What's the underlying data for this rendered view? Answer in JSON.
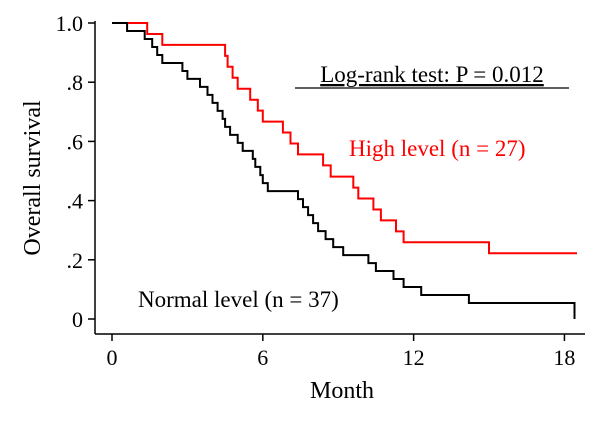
{
  "chart_data": {
    "type": "line",
    "step": true,
    "xlabel": "Month",
    "ylabel": "Overall survival",
    "xlim": [
      0,
      18.5
    ],
    "ylim": [
      0,
      1.0
    ],
    "x_ticks": [
      0,
      6,
      12,
      18
    ],
    "x_tick_labels": [
      "0",
      "6",
      "12",
      "18"
    ],
    "y_ticks": [
      0,
      0.2,
      0.4,
      0.6,
      0.8,
      1.0
    ],
    "y_tick_labels": [
      "0",
      ".2",
      ".4",
      ".6",
      ".8",
      "1.0"
    ],
    "grid": false,
    "annotation": "Log-rank test: P = 0.012",
    "series": [
      {
        "name": "High level (n = 27)",
        "color": "#ff0000",
        "points": [
          [
            0,
            1.0
          ],
          [
            1.4,
            0.963
          ],
          [
            2.0,
            0.926
          ],
          [
            4.5,
            0.889
          ],
          [
            4.6,
            0.852
          ],
          [
            4.8,
            0.815
          ],
          [
            5.0,
            0.778
          ],
          [
            5.5,
            0.741
          ],
          [
            5.8,
            0.704
          ],
          [
            6.0,
            0.667
          ],
          [
            6.8,
            0.63
          ],
          [
            7.1,
            0.593
          ],
          [
            7.4,
            0.556
          ],
          [
            8.4,
            0.519
          ],
          [
            8.7,
            0.481
          ],
          [
            9.6,
            0.444
          ],
          [
            9.8,
            0.407
          ],
          [
            10.4,
            0.37
          ],
          [
            10.7,
            0.333
          ],
          [
            11.3,
            0.296
          ],
          [
            11.6,
            0.259
          ],
          [
            15.0,
            0.222
          ],
          [
            18.5,
            0.222
          ]
        ]
      },
      {
        "name": "Normal level (n = 37)",
        "color": "#000000",
        "points": [
          [
            0,
            1.0
          ],
          [
            0.6,
            0.973
          ],
          [
            1.3,
            0.946
          ],
          [
            1.6,
            0.919
          ],
          [
            1.8,
            0.892
          ],
          [
            2.0,
            0.865
          ],
          [
            2.8,
            0.838
          ],
          [
            3.0,
            0.811
          ],
          [
            3.5,
            0.784
          ],
          [
            3.8,
            0.757
          ],
          [
            4.0,
            0.73
          ],
          [
            4.2,
            0.703
          ],
          [
            4.4,
            0.676
          ],
          [
            4.5,
            0.649
          ],
          [
            4.7,
            0.622
          ],
          [
            5.0,
            0.595
          ],
          [
            5.2,
            0.568
          ],
          [
            5.6,
            0.541
          ],
          [
            5.7,
            0.514
          ],
          [
            5.9,
            0.486
          ],
          [
            6.0,
            0.459
          ],
          [
            6.2,
            0.432
          ],
          [
            7.4,
            0.405
          ],
          [
            7.6,
            0.378
          ],
          [
            7.8,
            0.351
          ],
          [
            8.0,
            0.324
          ],
          [
            8.2,
            0.297
          ],
          [
            8.5,
            0.27
          ],
          [
            8.8,
            0.243
          ],
          [
            9.2,
            0.216
          ],
          [
            10.2,
            0.189
          ],
          [
            10.5,
            0.162
          ],
          [
            11.2,
            0.135
          ],
          [
            11.6,
            0.108
          ],
          [
            12.3,
            0.081
          ],
          [
            14.2,
            0.054
          ],
          [
            18.4,
            0.054
          ],
          [
            18.4,
            0.0
          ]
        ]
      }
    ]
  }
}
